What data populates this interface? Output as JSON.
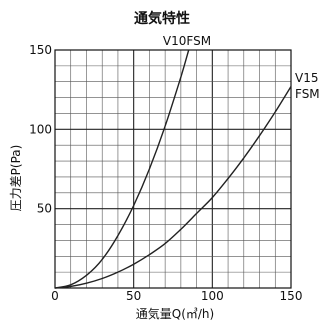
{
  "chart_data": {
    "type": "line",
    "title": "通気特性",
    "xlabel": "通気量Q(㎥/h)",
    "ylabel": "圧力差P(Pa)",
    "xlim": [
      0,
      150
    ],
    "ylim": [
      0,
      150
    ],
    "xticks": [
      0,
      50,
      100,
      150
    ],
    "yticks": [
      0,
      50,
      100,
      150
    ],
    "xtick_labels": [
      "0",
      "50",
      "100",
      "150"
    ],
    "ytick_labels": [
      "50",
      "100",
      "150"
    ],
    "grid": true,
    "series": [
      {
        "name": "V10FSM",
        "label_lines": [
          "V10FSM"
        ],
        "color": "#222222",
        "x": [
          0,
          10,
          20,
          30,
          40,
          50,
          60,
          70,
          80,
          85
        ],
        "y": [
          0,
          2,
          8,
          18,
          33,
          52,
          75,
          102,
          133,
          150
        ]
      },
      {
        "name": "V15FSM",
        "label_lines": [
          "V15",
          "FSM"
        ],
        "color": "#222222",
        "x": [
          0,
          10,
          20,
          30,
          40,
          50,
          60,
          70,
          80,
          90,
          100,
          110,
          120,
          130,
          140,
          150
        ],
        "y": [
          0,
          1,
          3,
          6,
          10,
          15,
          21,
          28,
          37,
          47,
          57,
          69,
          82,
          96,
          111,
          127
        ]
      }
    ]
  }
}
